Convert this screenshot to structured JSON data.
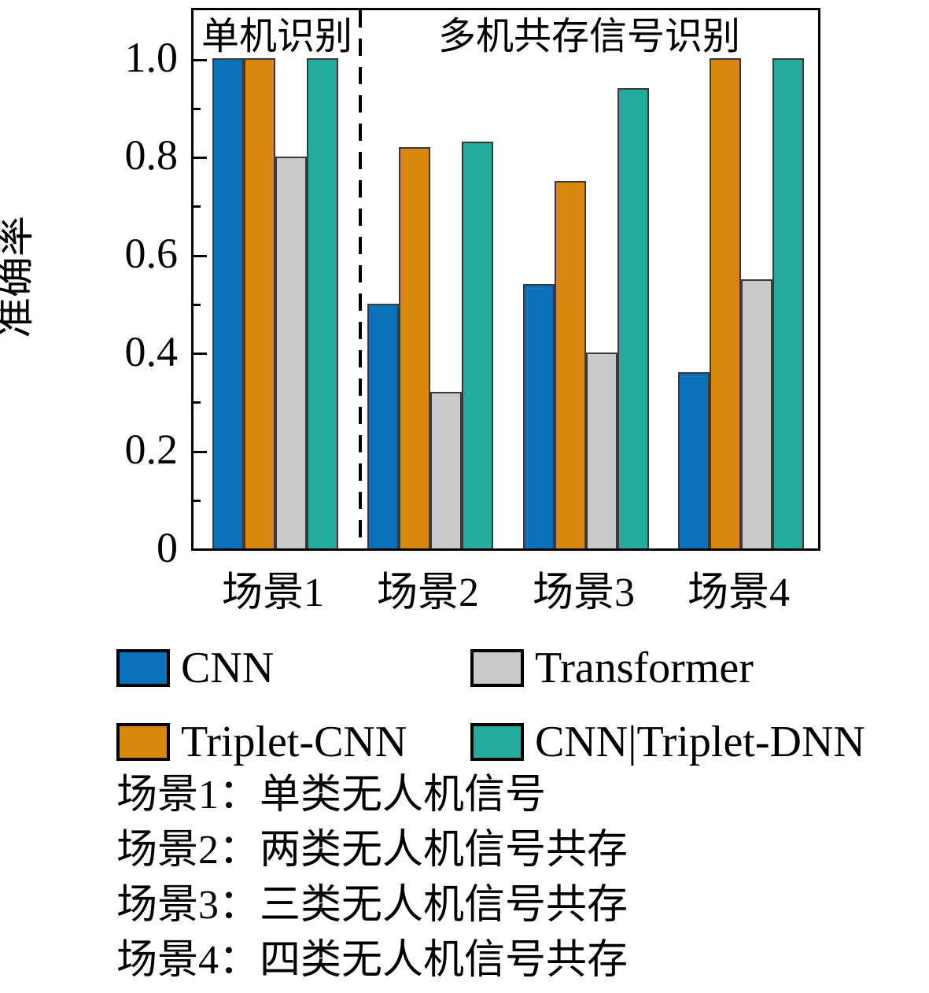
{
  "chart_data": {
    "type": "bar",
    "categories": [
      "场景1",
      "场景2",
      "场景3",
      "场景4"
    ],
    "series": [
      {
        "name": "CNN",
        "color": "#0a70b8",
        "values": [
          1.0,
          0.5,
          0.54,
          0.36
        ]
      },
      {
        "name": "Triplet-CNN",
        "color": "#d9870f",
        "values": [
          1.0,
          0.82,
          0.75,
          1.0
        ]
      },
      {
        "name": "Transformer",
        "color": "#c9c9c9",
        "values": [
          0.8,
          0.32,
          0.4,
          0.55
        ]
      },
      {
        "name": "CNN|Triplet-DNN",
        "color": "#25ab9b",
        "values": [
          1.0,
          0.83,
          0.94,
          1.0
        ]
      }
    ],
    "ylabel": "准确率",
    "xlabel": "",
    "ylim": [
      0,
      1.0
    ],
    "yticks": [
      0,
      0.2,
      0.4,
      0.6,
      0.8,
      1.0
    ],
    "ytick_labels": [
      "0",
      "0.2",
      "0.4",
      "0.6",
      "0.8",
      "1.0"
    ],
    "minor_yticks": [
      0.1,
      0.3,
      0.5,
      0.7,
      0.9
    ],
    "grid": false,
    "legend_position": "below",
    "separator_after_category_index": 0,
    "region_labels": {
      "left": "单机识别",
      "right": "多机共存信号识别"
    }
  },
  "legend": {
    "items": [
      {
        "label": "CNN",
        "color": "#0a70b8"
      },
      {
        "label": "Transformer",
        "color": "#c9c9c9"
      },
      {
        "label": "Triplet-CNN",
        "color": "#d9870f"
      },
      {
        "label": "CNN|Triplet-DNN",
        "color": "#25ab9b"
      }
    ]
  },
  "annotations": {
    "lines": [
      "场景1：单类无人机信号",
      "场景2：两类无人机信号共存",
      "场景3：三类无人机信号共存",
      "场景4：四类无人机信号共存"
    ]
  }
}
